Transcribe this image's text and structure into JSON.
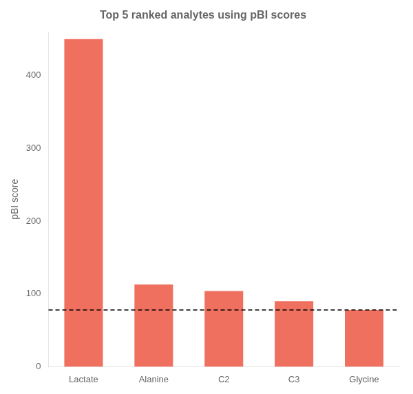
{
  "chart_data": {
    "type": "bar",
    "title": "Top 5 ranked analytes using pBI scores",
    "ylabel": "pBI score",
    "categories": [
      "Lactate",
      "Alanine",
      "C2",
      "C3",
      "Glycine"
    ],
    "values": [
      450,
      113,
      104,
      90,
      78
    ],
    "color": "#F07060",
    "reference_line": 78,
    "ylim": [
      0,
      460
    ],
    "yticks": [
      0,
      100,
      200,
      300,
      400
    ],
    "grid": false
  }
}
